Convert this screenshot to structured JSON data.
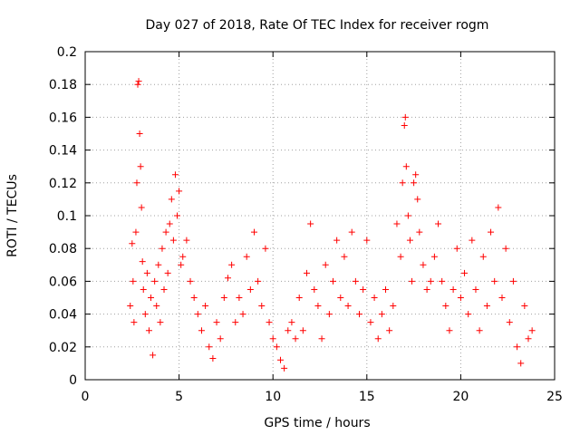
{
  "chart_data": {
    "type": "scatter",
    "title": "Day 027 of 2018, Rate Of TEC Index for receiver rogm",
    "xlabel": "GPS time / hours",
    "ylabel": "ROTI / TECUs",
    "xlim": [
      0,
      25
    ],
    "ylim": [
      0,
      0.2
    ],
    "xticks": [
      0,
      5,
      10,
      15,
      20,
      25
    ],
    "xtick_labels": [
      "0",
      "5",
      "10",
      "15",
      "20",
      "25"
    ],
    "yticks": [
      0,
      0.02,
      0.04,
      0.06,
      0.08,
      0.1,
      0.12,
      0.14,
      0.16,
      0.18,
      0.2
    ],
    "ytick_labels": [
      "0",
      "0.02",
      "0.04",
      "0.06",
      "0.08",
      "0.1",
      "0.12",
      "0.14",
      "0.16",
      "0.18",
      "0.2"
    ],
    "grid": true,
    "marker": "+",
    "color": "#ff0000",
    "series": [
      {
        "name": "ROTI",
        "points": [
          [
            2.4,
            0.045
          ],
          [
            2.5,
            0.083
          ],
          [
            2.55,
            0.06
          ],
          [
            2.6,
            0.035
          ],
          [
            2.7,
            0.09
          ],
          [
            2.75,
            0.12
          ],
          [
            2.8,
            0.18
          ],
          [
            2.85,
            0.182
          ],
          [
            2.9,
            0.15
          ],
          [
            2.95,
            0.13
          ],
          [
            3.0,
            0.105
          ],
          [
            3.05,
            0.072
          ],
          [
            3.1,
            0.055
          ],
          [
            3.2,
            0.04
          ],
          [
            3.3,
            0.065
          ],
          [
            3.4,
            0.03
          ],
          [
            3.5,
            0.05
          ],
          [
            3.6,
            0.015
          ],
          [
            3.7,
            0.06
          ],
          [
            3.8,
            0.045
          ],
          [
            3.9,
            0.07
          ],
          [
            4.0,
            0.035
          ],
          [
            4.1,
            0.08
          ],
          [
            4.2,
            0.055
          ],
          [
            4.3,
            0.09
          ],
          [
            4.4,
            0.065
          ],
          [
            4.5,
            0.095
          ],
          [
            4.6,
            0.11
          ],
          [
            4.7,
            0.085
          ],
          [
            4.8,
            0.125
          ],
          [
            4.9,
            0.1
          ],
          [
            5.0,
            0.115
          ],
          [
            5.1,
            0.07
          ],
          [
            5.2,
            0.075
          ],
          [
            5.4,
            0.085
          ],
          [
            5.6,
            0.06
          ],
          [
            5.8,
            0.05
          ],
          [
            6.0,
            0.04
          ],
          [
            6.2,
            0.03
          ],
          [
            6.4,
            0.045
          ],
          [
            6.6,
            0.02
          ],
          [
            6.8,
            0.013
          ],
          [
            7.0,
            0.035
          ],
          [
            7.2,
            0.025
          ],
          [
            7.4,
            0.05
          ],
          [
            7.6,
            0.062
          ],
          [
            7.8,
            0.07
          ],
          [
            8.0,
            0.035
          ],
          [
            8.2,
            0.05
          ],
          [
            8.4,
            0.04
          ],
          [
            8.6,
            0.075
          ],
          [
            8.8,
            0.055
          ],
          [
            9.0,
            0.09
          ],
          [
            9.2,
            0.06
          ],
          [
            9.4,
            0.045
          ],
          [
            9.6,
            0.08
          ],
          [
            9.8,
            0.035
          ],
          [
            10.0,
            0.025
          ],
          [
            10.2,
            0.02
          ],
          [
            10.4,
            0.012
          ],
          [
            10.6,
            0.007
          ],
          [
            10.8,
            0.03
          ],
          [
            11.0,
            0.035
          ],
          [
            11.2,
            0.025
          ],
          [
            11.4,
            0.05
          ],
          [
            11.6,
            0.03
          ],
          [
            11.8,
            0.065
          ],
          [
            12.0,
            0.095
          ],
          [
            12.2,
            0.055
          ],
          [
            12.4,
            0.045
          ],
          [
            12.6,
            0.025
          ],
          [
            12.8,
            0.07
          ],
          [
            13.0,
            0.04
          ],
          [
            13.2,
            0.06
          ],
          [
            13.4,
            0.085
          ],
          [
            13.6,
            0.05
          ],
          [
            13.8,
            0.075
          ],
          [
            14.0,
            0.045
          ],
          [
            14.2,
            0.09
          ],
          [
            14.4,
            0.06
          ],
          [
            14.6,
            0.04
          ],
          [
            14.8,
            0.055
          ],
          [
            15.0,
            0.085
          ],
          [
            15.2,
            0.035
          ],
          [
            15.4,
            0.05
          ],
          [
            15.6,
            0.025
          ],
          [
            15.8,
            0.04
          ],
          [
            16.0,
            0.055
          ],
          [
            16.2,
            0.03
          ],
          [
            16.4,
            0.045
          ],
          [
            16.6,
            0.095
          ],
          [
            16.8,
            0.075
          ],
          [
            16.9,
            0.12
          ],
          [
            17.0,
            0.155
          ],
          [
            17.05,
            0.16
          ],
          [
            17.1,
            0.13
          ],
          [
            17.2,
            0.1
          ],
          [
            17.3,
            0.085
          ],
          [
            17.4,
            0.06
          ],
          [
            17.5,
            0.12
          ],
          [
            17.6,
            0.125
          ],
          [
            17.7,
            0.11
          ],
          [
            17.8,
            0.09
          ],
          [
            18.0,
            0.07
          ],
          [
            18.2,
            0.055
          ],
          [
            18.4,
            0.06
          ],
          [
            18.6,
            0.075
          ],
          [
            18.8,
            0.095
          ],
          [
            19.0,
            0.06
          ],
          [
            19.2,
            0.045
          ],
          [
            19.4,
            0.03
          ],
          [
            19.6,
            0.055
          ],
          [
            19.8,
            0.08
          ],
          [
            20.0,
            0.05
          ],
          [
            20.2,
            0.065
          ],
          [
            20.4,
            0.04
          ],
          [
            20.6,
            0.085
          ],
          [
            20.8,
            0.055
          ],
          [
            21.0,
            0.03
          ],
          [
            21.2,
            0.075
          ],
          [
            21.4,
            0.045
          ],
          [
            21.6,
            0.09
          ],
          [
            21.8,
            0.06
          ],
          [
            22.0,
            0.105
          ],
          [
            22.2,
            0.05
          ],
          [
            22.4,
            0.08
          ],
          [
            22.6,
            0.035
          ],
          [
            22.8,
            0.06
          ],
          [
            23.0,
            0.02
          ],
          [
            23.2,
            0.01
          ],
          [
            23.4,
            0.045
          ],
          [
            23.6,
            0.025
          ],
          [
            23.8,
            0.03
          ]
        ]
      }
    ]
  }
}
